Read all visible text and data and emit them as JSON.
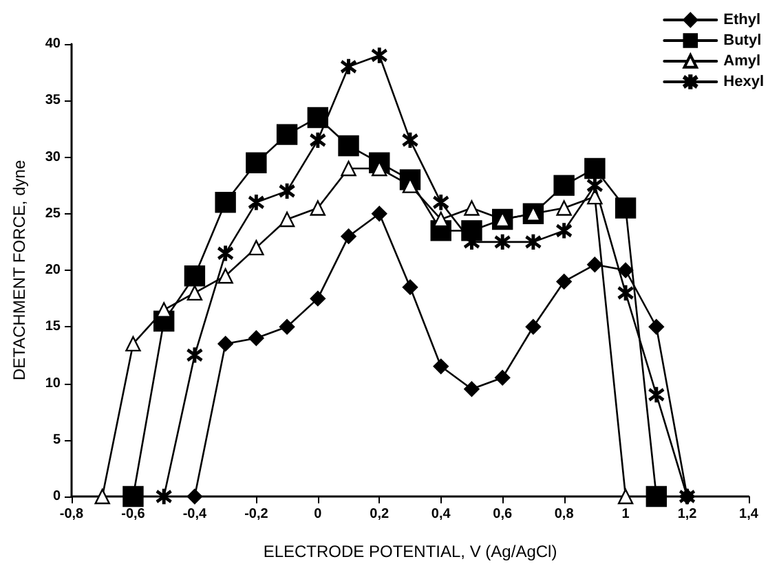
{
  "chart_data": {
    "type": "line",
    "xlabel": "ELECTRODE POTENTIAL, V (Ag/AgCl)",
    "ylabel": "DETACHMENT FORCE, dyne",
    "xlim": [
      -0.8,
      1.4
    ],
    "xticks": [
      {
        "value": -0.8,
        "label": "-0,8"
      },
      {
        "value": -0.6,
        "label": "-0,6"
      },
      {
        "value": -0.4,
        "label": "-0,4"
      },
      {
        "value": -0.2,
        "label": "-0,2"
      },
      0,
      {
        "value": 0.2,
        "label": "0,2"
      },
      {
        "value": 0.4,
        "label": "0,4"
      },
      {
        "value": 0.6,
        "label": "0,6"
      },
      {
        "value": 0.8,
        "label": "0,8"
      },
      1,
      {
        "value": 1.2,
        "label": "1,2"
      },
      {
        "value": 1.4,
        "label": "1,4"
      }
    ],
    "ylim": [
      0,
      40
    ],
    "yticks": [
      0,
      5,
      10,
      15,
      20,
      25,
      30,
      35,
      40
    ],
    "grid": false,
    "legend": "top right",
    "line_style": "solid",
    "series": [
      {
        "name": "Ethyl",
        "color": "#000000",
        "marker": "diamond",
        "x": [
          -0.4,
          -0.3,
          -0.2,
          -0.1,
          0,
          0.1,
          0.2,
          0.3,
          0.4,
          0.5,
          0.6,
          0.7,
          0.8,
          0.9,
          1.0,
          1.1,
          1.2
        ],
        "values": [
          0,
          13.5,
          14,
          15,
          17.5,
          23,
          25,
          18.5,
          11.5,
          9.5,
          10.5,
          15,
          19,
          20.5,
          20,
          15,
          0
        ]
      },
      {
        "name": "Butyl",
        "color": "#000000",
        "marker": "square",
        "x": [
          -0.6,
          -0.5,
          -0.4,
          -0.3,
          -0.2,
          -0.1,
          0,
          0.1,
          0.2,
          0.3,
          0.4,
          0.5,
          0.6,
          0.7,
          0.8,
          0.9,
          1.0,
          1.1
        ],
        "values": [
          0,
          15.5,
          19.5,
          26,
          29.5,
          32,
          33.5,
          31,
          29.5,
          28,
          23.5,
          23.5,
          24.5,
          25,
          27.5,
          29,
          25.5,
          0
        ]
      },
      {
        "name": "Amyl",
        "color": "#000000",
        "marker": "triangle",
        "x": [
          -0.7,
          -0.6,
          -0.5,
          -0.4,
          -0.3,
          -0.2,
          -0.1,
          0,
          0.1,
          0.2,
          0.3,
          0.4,
          0.5,
          0.6,
          0.7,
          0.8,
          0.9,
          1.0
        ],
        "values": [
          0,
          13.5,
          16.5,
          18,
          19.5,
          22,
          24.5,
          25.5,
          29,
          29,
          27.5,
          24.5,
          25.5,
          24.5,
          25,
          25.5,
          26.5,
          0
        ]
      },
      {
        "name": "Hexyl",
        "color": "#000000",
        "marker": "cross",
        "x": [
          -0.5,
          -0.4,
          -0.3,
          -0.2,
          -0.1,
          0,
          0.1,
          0.2,
          0.3,
          0.4,
          0.5,
          0.6,
          0.7,
          0.8,
          0.9,
          1.0,
          1.1,
          1.2
        ],
        "values": [
          0,
          12.5,
          21.5,
          26,
          27,
          31.5,
          38,
          39,
          31.5,
          26,
          22.5,
          22.5,
          22.5,
          23.5,
          27.5,
          18,
          9,
          0
        ]
      }
    ]
  }
}
